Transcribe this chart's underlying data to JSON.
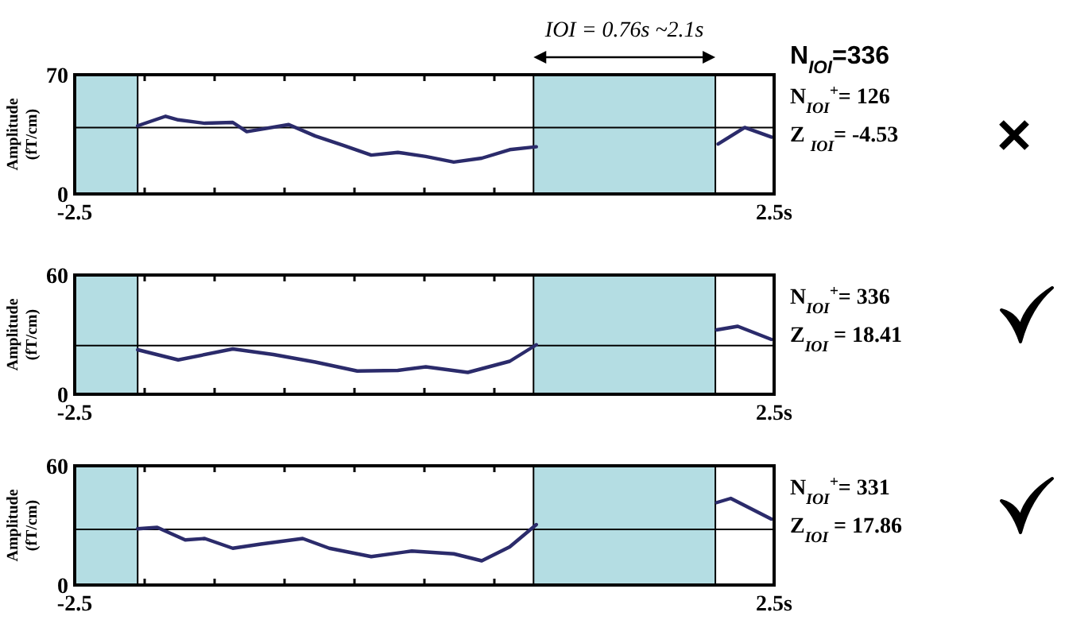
{
  "chart_data": [
    {
      "type": "line",
      "ylabel": "Amplitude (fT/cm)",
      "xlim": [
        -2.5,
        2.5
      ],
      "ylim": [
        0,
        70
      ],
      "yticks": [
        0,
        70
      ],
      "xticks": [
        {
          "value": -2.5,
          "label": "-2.5"
        },
        {
          "value": -2,
          "label": null
        },
        {
          "value": -1.5,
          "label": null
        },
        {
          "value": -1,
          "label": null
        },
        {
          "value": -0.5,
          "label": null
        },
        {
          "value": 0,
          "label": null
        },
        {
          "value": 0.5,
          "label": null
        },
        {
          "value": 2.5,
          "label": "2.5s"
        }
      ],
      "series": [
        {
          "color": "#2b2b6b",
          "x": [
            -2.05,
            -1.85,
            -1.76,
            -1.57,
            -1.37,
            -1.27,
            -0.97,
            -0.78,
            -0.58,
            -0.38,
            -0.19,
            0.01,
            0.21,
            0.41,
            0.61,
            0.8,
            1.5,
            2.1,
            2.29,
            2.48
          ],
          "values": [
            40,
            45.6,
            43.5,
            41.5,
            42,
            36.6,
            40.7,
            34,
            28.5,
            22.8,
            24.4,
            22,
            18.7,
            21,
            26,
            27.7,
            null,
            29.3,
            39,
            33.4
          ]
        }
      ],
      "ref_lines": [
        {
          "axis": "y",
          "value": 39,
          "color": "#000000"
        }
      ],
      "bands": [
        {
          "axis": "x",
          "from": -2.5,
          "to": -2.05,
          "color": "#b4dde3"
        },
        {
          "axis": "x",
          "from": 0.78,
          "to": 2.08,
          "color": "#b4dde3"
        }
      ],
      "annotations": [
        "IOI = 0.76s ~2.1s",
        "N$_{IOI}$=336",
        "N$_{IOI}$$^{+}$= 126",
        "Z $_{IOI}$= -4.53"
      ]
    },
    {
      "type": "line",
      "ylabel": "Amplitude (fT/cm)",
      "xlim": [
        -2.5,
        2.5
      ],
      "ylim": [
        0,
        60
      ],
      "yticks": [
        0,
        60
      ],
      "xticks": [
        {
          "value": -2.5,
          "label": "-2.5"
        },
        {
          "value": -2,
          "label": null
        },
        {
          "value": -1.5,
          "label": null
        },
        {
          "value": -1,
          "label": null
        },
        {
          "value": -0.5,
          "label": null
        },
        {
          "value": 0,
          "label": null
        },
        {
          "value": 0.5,
          "label": null
        },
        {
          "value": 2.5,
          "label": "2.5s"
        }
      ],
      "series": [
        {
          "color": "#2b2b6b",
          "x": [
            -2.05,
            -1.76,
            -1.37,
            -1.08,
            -0.78,
            -0.48,
            -0.19,
            0.01,
            0.31,
            0.61,
            0.8,
            1.5,
            2.09,
            2.24,
            2.48
          ],
          "values": [
            22.4,
            17.3,
            22.8,
            20,
            16.2,
            11.7,
            12,
            13.8,
            11,
            16.6,
            24.9,
            null,
            32.4,
            34.2,
            27.6
          ]
        }
      ],
      "ref_lines": [
        {
          "axis": "y",
          "value": 24.5,
          "color": "#000000"
        }
      ],
      "bands": [
        {
          "axis": "x",
          "from": -2.5,
          "to": -2.05,
          "color": "#b4dde3"
        },
        {
          "axis": "x",
          "from": 0.78,
          "to": 2.08,
          "color": "#b4dde3"
        }
      ],
      "annotations": [
        "N$_{IOI}$$^{+}$= 336",
        "Z$_{IOI}$ = 18.41"
      ]
    },
    {
      "type": "line",
      "ylabel": "Amplitude (fT/cm)",
      "xlim": [
        -2.5,
        2.5
      ],
      "ylim": [
        0,
        60
      ],
      "yticks": [
        0,
        60
      ],
      "xticks": [
        {
          "value": -2.5,
          "label": "-2.5"
        },
        {
          "value": -2,
          "label": null
        },
        {
          "value": -1.5,
          "label": null
        },
        {
          "value": -1,
          "label": null
        },
        {
          "value": -0.5,
          "label": null
        },
        {
          "value": 0,
          "label": null
        },
        {
          "value": 0.5,
          "label": null
        },
        {
          "value": 2.5,
          "label": "2.5s"
        }
      ],
      "series": [
        {
          "color": "#2b2b6b",
          "x": [
            -2.05,
            -1.91,
            -1.71,
            -1.57,
            -1.37,
            -1.17,
            -0.87,
            -0.68,
            -0.38,
            -0.09,
            0.21,
            0.41,
            0.61,
            0.8,
            1.5,
            2.09,
            2.19,
            2.48
          ],
          "values": [
            28.3,
            29,
            22.7,
            23.4,
            18.5,
            20.6,
            23.4,
            18.5,
            14.3,
            17.1,
            15.7,
            12.2,
            19.2,
            30.4,
            null,
            41.5,
            43.6,
            33.2
          ]
        }
      ],
      "ref_lines": [
        {
          "axis": "y",
          "value": 28,
          "color": "#000000"
        }
      ],
      "bands": [
        {
          "axis": "x",
          "from": -2.5,
          "to": -2.05,
          "color": "#b4dde3"
        },
        {
          "axis": "x",
          "from": 0.78,
          "to": 2.08,
          "color": "#b4dde3"
        }
      ],
      "annotations": [
        "N$_{IOI}$$^{+}$= 331",
        "Z$_{IOI}$ = 17.86"
      ]
    }
  ]
}
